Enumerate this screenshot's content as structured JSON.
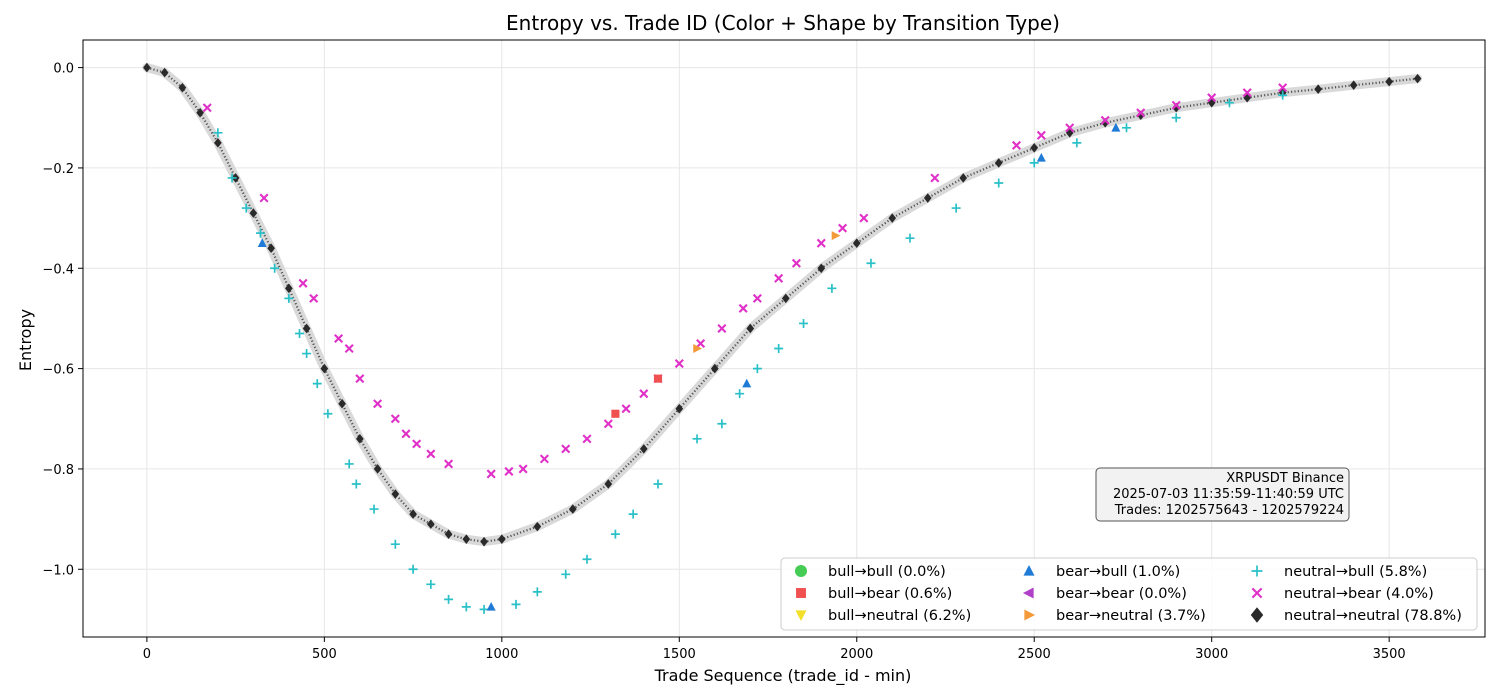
{
  "chart_data": {
    "type": "scatter",
    "title": "Entropy vs. Trade ID (Color + Shape by Transition Type)",
    "xlabel": "Trade Sequence (trade_id - min)",
    "ylabel": "Entropy",
    "xlim": [
      -180,
      3770
    ],
    "ylim": [
      -1.135,
      0.055
    ],
    "xticks": [
      0,
      500,
      1000,
      1500,
      2000,
      2500,
      3000,
      3500
    ],
    "yticks": [
      0.0,
      -0.2,
      -0.4,
      -0.6,
      -0.8,
      -1.0
    ],
    "xtick_labels": [
      "0",
      "500",
      "1000",
      "1500",
      "2000",
      "2500",
      "3000",
      "3500"
    ],
    "ytick_labels": [
      "0.0",
      "−0.2",
      "−0.4",
      "−0.6",
      "−0.8",
      "−1.0"
    ],
    "grid": true,
    "legend_position": "lower-right",
    "legend_columns": 3,
    "legend": [
      {
        "label": "bull→bull (0.0%)",
        "marker": "circle",
        "color": "#44cc55"
      },
      {
        "label": "bull→bear (0.6%)",
        "marker": "square",
        "color": "#f05050"
      },
      {
        "label": "bull→neutral (6.2%)",
        "marker": "triangle-down",
        "color": "#f2e02a"
      },
      {
        "label": "bear→bull (1.0%)",
        "marker": "triangle-up",
        "color": "#1f7bd6"
      },
      {
        "label": "bear→bear (0.0%)",
        "marker": "triangle-left",
        "color": "#b040c8"
      },
      {
        "label": "bear→neutral (3.7%)",
        "marker": "triangle-right",
        "color": "#f59a3a"
      },
      {
        "label": "neutral→bull (5.8%)",
        "marker": "plus",
        "color": "#2ac0c8"
      },
      {
        "label": "neutral→bear (4.0%)",
        "marker": "x",
        "color": "#e030c8"
      },
      {
        "label": "neutral→neutral (78.8%)",
        "marker": "diamond",
        "color": "#2a2a2a"
      }
    ],
    "annotation": {
      "lines": [
        "XRPUSDT Binance",
        "2025-07-03 11:35:59-11:40:59 UTC",
        "Trades: 1202575643 - 1202579224"
      ]
    },
    "series": [
      {
        "name": "neutral→neutral (78.8%)",
        "marker": "diamond",
        "color": "#2a2a2a",
        "points": [
          [
            0,
            0.0
          ],
          [
            50,
            -0.01
          ],
          [
            100,
            -0.04
          ],
          [
            150,
            -0.09
          ],
          [
            200,
            -0.15
          ],
          [
            250,
            -0.22
          ],
          [
            300,
            -0.29
          ],
          [
            350,
            -0.36
          ],
          [
            400,
            -0.44
          ],
          [
            450,
            -0.52
          ],
          [
            500,
            -0.6
          ],
          [
            550,
            -0.67
          ],
          [
            600,
            -0.74
          ],
          [
            650,
            -0.8
          ],
          [
            700,
            -0.85
          ],
          [
            750,
            -0.89
          ],
          [
            800,
            -0.91
          ],
          [
            850,
            -0.93
          ],
          [
            900,
            -0.94
          ],
          [
            950,
            -0.945
          ],
          [
            1000,
            -0.94
          ],
          [
            1100,
            -0.915
          ],
          [
            1200,
            -0.88
          ],
          [
            1300,
            -0.83
          ],
          [
            1400,
            -0.76
          ],
          [
            1500,
            -0.68
          ],
          [
            1600,
            -0.6
          ],
          [
            1700,
            -0.52
          ],
          [
            1800,
            -0.46
          ],
          [
            1900,
            -0.4
          ],
          [
            2000,
            -0.35
          ],
          [
            2100,
            -0.3
          ],
          [
            2200,
            -0.26
          ],
          [
            2300,
            -0.22
          ],
          [
            2400,
            -0.19
          ],
          [
            2500,
            -0.16
          ],
          [
            2600,
            -0.13
          ],
          [
            2700,
            -0.11
          ],
          [
            2800,
            -0.095
          ],
          [
            2900,
            -0.08
          ],
          [
            3000,
            -0.07
          ],
          [
            3100,
            -0.06
          ],
          [
            3200,
            -0.05
          ],
          [
            3300,
            -0.043
          ],
          [
            3400,
            -0.035
          ],
          [
            3500,
            -0.028
          ],
          [
            3580,
            -0.022
          ]
        ]
      },
      {
        "name": "neutral→bear (4.0%)",
        "marker": "x",
        "color": "#e030c8",
        "points": [
          [
            170,
            -0.08
          ],
          [
            330,
            -0.26
          ],
          [
            440,
            -0.43
          ],
          [
            470,
            -0.46
          ],
          [
            540,
            -0.54
          ],
          [
            570,
            -0.56
          ],
          [
            600,
            -0.62
          ],
          [
            650,
            -0.67
          ],
          [
            700,
            -0.7
          ],
          [
            730,
            -0.73
          ],
          [
            760,
            -0.75
          ],
          [
            800,
            -0.77
          ],
          [
            850,
            -0.79
          ],
          [
            970,
            -0.81
          ],
          [
            1020,
            -0.805
          ],
          [
            1060,
            -0.8
          ],
          [
            1120,
            -0.78
          ],
          [
            1180,
            -0.76
          ],
          [
            1240,
            -0.74
          ],
          [
            1300,
            -0.71
          ],
          [
            1350,
            -0.68
          ],
          [
            1400,
            -0.65
          ],
          [
            1440,
            -0.62
          ],
          [
            1500,
            -0.59
          ],
          [
            1560,
            -0.55
          ],
          [
            1620,
            -0.52
          ],
          [
            1680,
            -0.48
          ],
          [
            1720,
            -0.46
          ],
          [
            1780,
            -0.42
          ],
          [
            1830,
            -0.39
          ],
          [
            1900,
            -0.35
          ],
          [
            1960,
            -0.32
          ],
          [
            2020,
            -0.3
          ],
          [
            2220,
            -0.22
          ],
          [
            2450,
            -0.155
          ],
          [
            2520,
            -0.135
          ],
          [
            2600,
            -0.12
          ],
          [
            2700,
            -0.105
          ],
          [
            2800,
            -0.09
          ],
          [
            2900,
            -0.075
          ],
          [
            3000,
            -0.06
          ],
          [
            3100,
            -0.05
          ],
          [
            3200,
            -0.04
          ]
        ]
      },
      {
        "name": "neutral→bull (5.8%)",
        "marker": "plus",
        "color": "#2ac0c8",
        "points": [
          [
            200,
            -0.13
          ],
          [
            240,
            -0.22
          ],
          [
            280,
            -0.28
          ],
          [
            320,
            -0.33
          ],
          [
            360,
            -0.4
          ],
          [
            400,
            -0.46
          ],
          [
            430,
            -0.53
          ],
          [
            450,
            -0.57
          ],
          [
            480,
            -0.63
          ],
          [
            510,
            -0.69
          ],
          [
            570,
            -0.79
          ],
          [
            590,
            -0.83
          ],
          [
            640,
            -0.88
          ],
          [
            700,
            -0.95
          ],
          [
            750,
            -1.0
          ],
          [
            800,
            -1.03
          ],
          [
            850,
            -1.06
          ],
          [
            900,
            -1.075
          ],
          [
            950,
            -1.08
          ],
          [
            1040,
            -1.07
          ],
          [
            1100,
            -1.045
          ],
          [
            1180,
            -1.01
          ],
          [
            1240,
            -0.98
          ],
          [
            1320,
            -0.93
          ],
          [
            1370,
            -0.89
          ],
          [
            1440,
            -0.83
          ],
          [
            1550,
            -0.74
          ],
          [
            1620,
            -0.71
          ],
          [
            1670,
            -0.65
          ],
          [
            1720,
            -0.6
          ],
          [
            1780,
            -0.56
          ],
          [
            1850,
            -0.51
          ],
          [
            1930,
            -0.44
          ],
          [
            2040,
            -0.39
          ],
          [
            2150,
            -0.34
          ],
          [
            2280,
            -0.28
          ],
          [
            2400,
            -0.23
          ],
          [
            2500,
            -0.19
          ],
          [
            2620,
            -0.15
          ],
          [
            2760,
            -0.12
          ],
          [
            2900,
            -0.1
          ],
          [
            3050,
            -0.07
          ],
          [
            3200,
            -0.055
          ]
        ]
      },
      {
        "name": "bear→bull (1.0%)",
        "marker": "triangle-up",
        "color": "#1f7bd6",
        "points": [
          [
            325,
            -0.35
          ],
          [
            970,
            -1.075
          ],
          [
            1690,
            -0.63
          ],
          [
            2520,
            -0.18
          ],
          [
            2730,
            -0.12
          ]
        ]
      },
      {
        "name": "bull→bear (0.6%)",
        "marker": "square",
        "color": "#f05050",
        "points": [
          [
            1320,
            -0.69
          ],
          [
            1440,
            -0.62
          ]
        ]
      },
      {
        "name": "bear→neutral (3.7%)",
        "marker": "triangle-right",
        "color": "#f59a3a",
        "points": [
          [
            1550,
            -0.56
          ],
          [
            1940,
            -0.335
          ]
        ]
      }
    ]
  }
}
